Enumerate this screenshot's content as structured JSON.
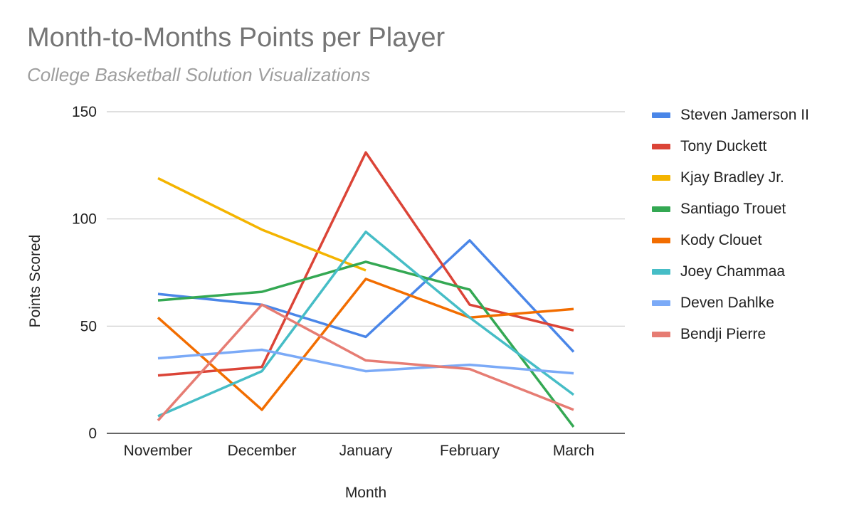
{
  "chart_data": {
    "type": "line",
    "title": "Month-to-Months Points per Player",
    "subtitle": "College Basketball Solution Visualizations",
    "xlabel": "Month",
    "ylabel": "Points Scored",
    "categories": [
      "November",
      "December",
      "January",
      "February",
      "March"
    ],
    "ylim": [
      0,
      150
    ],
    "yticks": [
      0,
      50,
      100,
      150
    ],
    "grid": true,
    "legend": "right",
    "series": [
      {
        "name": "Steven Jamerson II",
        "color": "#4a86e8",
        "values": [
          65,
          60,
          45,
          90,
          38
        ]
      },
      {
        "name": "Tony Duckett",
        "color": "#db4437",
        "values": [
          27,
          31,
          131,
          60,
          48
        ]
      },
      {
        "name": "Kjay Bradley Jr.",
        "color": "#f4b400",
        "values": [
          119,
          95,
          76,
          null,
          null
        ]
      },
      {
        "name": "Santiago Trouet",
        "color": "#34a853",
        "values": [
          62,
          66,
          80,
          67,
          3
        ]
      },
      {
        "name": "Kody Clouet",
        "color": "#f26d00",
        "values": [
          54,
          11,
          72,
          54,
          58
        ]
      },
      {
        "name": "Joey Chammaa",
        "color": "#46bdc6",
        "values": [
          8,
          29,
          94,
          54,
          18
        ]
      },
      {
        "name": "Deven Dahlke",
        "color": "#7baaf7",
        "values": [
          35,
          39,
          29,
          32,
          28
        ]
      },
      {
        "name": "Bendji Pierre",
        "color": "#e67c73",
        "values": [
          6,
          60,
          34,
          30,
          11
        ]
      }
    ]
  }
}
